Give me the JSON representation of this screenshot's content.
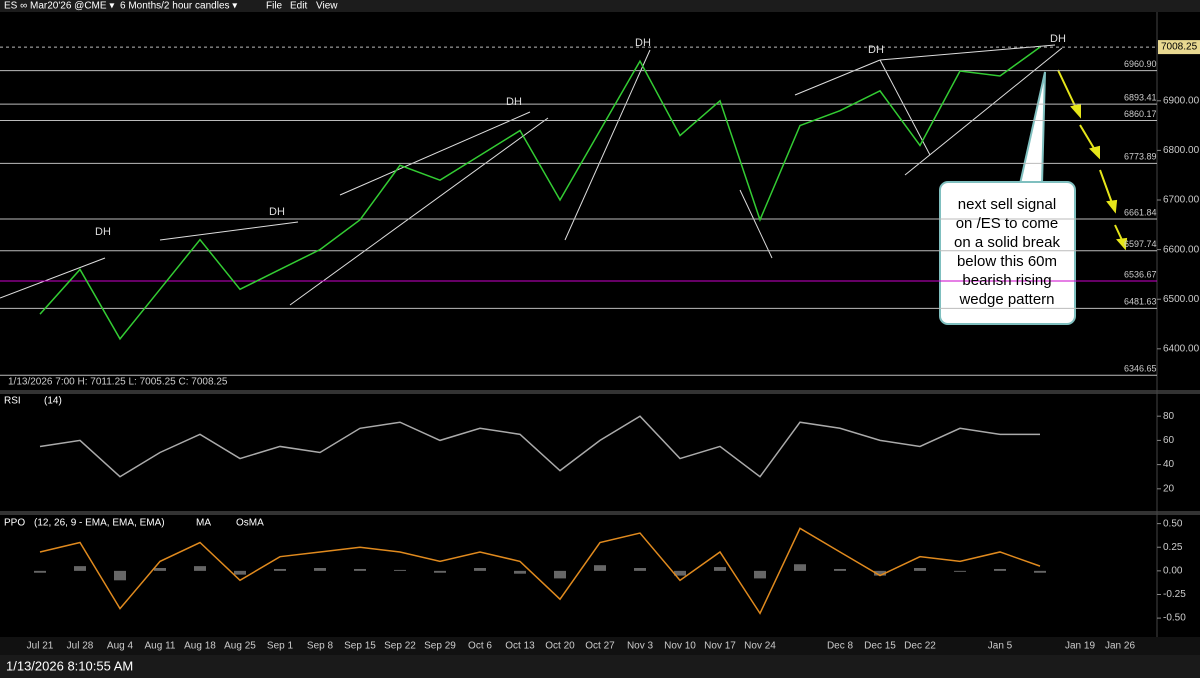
{
  "toolbar": {
    "symbol": "ES ∞ Mar20'26 @CME ▾",
    "interval": "6 Months/2 hour candles ▾",
    "menu": [
      "File",
      "Edit",
      "View"
    ]
  },
  "price_panel": {
    "ohlc": "1/13/2026 7:00   H: 7011.25   L: 7005.25   C: 7008.25",
    "ylim": [
      6317,
      7079
    ],
    "yticks": [
      {
        "value": 6400,
        "label": "6400.00"
      },
      {
        "value": 6500,
        "label": "6500.00"
      },
      {
        "value": 6600,
        "label": "6600.00"
      },
      {
        "value": 6700,
        "label": "6700.00"
      },
      {
        "value": 6800,
        "label": "6800.00"
      },
      {
        "value": 6900,
        "label": "6900.00"
      }
    ],
    "levels": [
      7008.25,
      {
        "value": 6960.9,
        "label": "6960.90"
      },
      6893.41,
      6860.17,
      6773.89,
      6661.84,
      6597.74,
      6536.67,
      6481.63,
      6346.65
    ],
    "level_colors": [
      "#bbbbbb",
      "#bbbbbb",
      "#bbbbbb",
      "#bbbbbb",
      "#bbbbbb",
      "#bbbbbb",
      "#bbbbbb",
      "#cc00cc",
      "#bbbbbb",
      "#bbbbbb"
    ],
    "close_color": "#33cc33",
    "close": [
      6470,
      6560,
      6420,
      6520,
      6620,
      6520,
      6560,
      6600,
      6660,
      6770,
      6740,
      6790,
      6840,
      6700,
      6840,
      6980,
      6830,
      6900,
      6660,
      6850,
      6880,
      6920,
      6810,
      6960,
      6950,
      7008.25,
      null,
      null
    ],
    "dh_labels": [
      "DH",
      "DH",
      "DH",
      "DH",
      "DH",
      "DH"
    ]
  },
  "dates": [
    "Jul 21",
    "Jul 28",
    "Aug 4",
    "Aug 11",
    "Aug 18",
    "Aug 25",
    "Sep 1",
    "Sep 8",
    "Sep 15",
    "Sep 22",
    "Sep 29",
    "Oct 6",
    "Oct 13",
    "Oct 20",
    "Oct 27",
    "Nov 3",
    "Nov 10",
    "Nov 17",
    "Nov 24",
    null,
    "Dec 8",
    "Dec 15",
    "Dec 22",
    null,
    "Jan 5",
    null,
    "Jan 19",
    "Jan 26"
  ],
  "rsi_panel": {
    "name": "RSI",
    "params": "(14)",
    "ylim": [
      2.5,
      97.5
    ],
    "yticks": [
      20,
      40,
      60,
      80
    ],
    "color": "#aaaaaa",
    "values": [
      55,
      60,
      30,
      50,
      65,
      45,
      55,
      50,
      70,
      75,
      60,
      70,
      65,
      35,
      60,
      80,
      45,
      55,
      30,
      75,
      70,
      60,
      55,
      70,
      65,
      65,
      null,
      null
    ]
  },
  "ppo_panel": {
    "name": "PPO",
    "params": "(12, 26, 9 - EMA, EMA, EMA)",
    "ma_label": "MA",
    "osma_label": "OsMA",
    "ylim": [
      -0.7,
      0.57
    ],
    "yticks": [
      {
        "value": 0.5,
        "label": "0.50"
      },
      {
        "value": 0.25,
        "label": "0.25"
      },
      {
        "value": 0,
        "label": "0.00"
      },
      {
        "value": -0.25,
        "label": "-0.25"
      },
      {
        "value": -0.5,
        "label": "-0.50"
      }
    ],
    "ppo_color": "#e08a1e",
    "osma_color": "#666666",
    "ppo": [
      0.2,
      0.3,
      -0.4,
      0.1,
      0.3,
      -0.1,
      0.15,
      0.2,
      0.25,
      0.2,
      0.1,
      0.2,
      0.1,
      -0.3,
      0.3,
      0.4,
      -0.1,
      0.2,
      -0.45,
      0.45,
      0.2,
      -0.05,
      0.15,
      0.1,
      0.2,
      0.05,
      null,
      null
    ],
    "osma": [
      -0.02,
      0.05,
      -0.1,
      0.03,
      0.05,
      -0.04,
      0.02,
      0.03,
      0.02,
      0.01,
      -0.02,
      0.03,
      -0.03,
      -0.08,
      0.06,
      0.03,
      -0.05,
      0.04,
      -0.08,
      0.07,
      0.02,
      -0.05,
      0.03,
      -0.01,
      0.02,
      -0.02,
      null,
      null
    ]
  },
  "annotation": [
    "next sell signal",
    "on /ES to come",
    "on a solid break",
    "below this 60m",
    "bearish rising",
    "wedge pattern"
  ],
  "status": "1/13/2026 8:10:55 AM"
}
